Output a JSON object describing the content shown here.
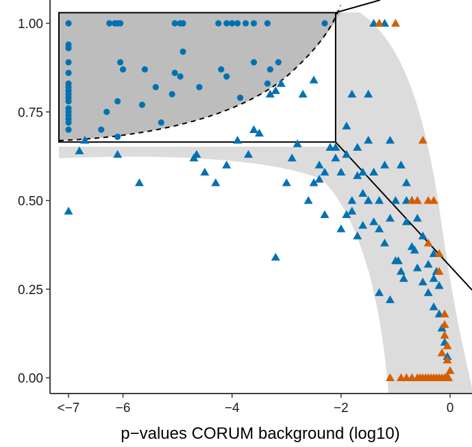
{
  "chart_data": {
    "type": "scatter",
    "title": "",
    "xlabel": "p−values CORUM background (log10)",
    "ylabel": "",
    "xlim": [
      -7.1,
      0.3
    ],
    "ylim": [
      -0.04,
      1.03
    ],
    "x_ticks": [
      {
        "value": -7,
        "label": "<−7"
      },
      {
        "value": -6,
        "label": "−6"
      },
      {
        "value": -4,
        "label": "−4"
      },
      {
        "value": -2,
        "label": "−2"
      },
      {
        "value": 0,
        "label": "0"
      }
    ],
    "y_ticks": [
      {
        "value": 0.0,
        "label": "0.00"
      },
      {
        "value": 0.25,
        "label": "0.25"
      },
      {
        "value": 0.5,
        "label": "0.50"
      },
      {
        "value": 0.75,
        "label": "0.75"
      },
      {
        "value": 1.0,
        "label": "1.00"
      }
    ],
    "colors": {
      "blue": "#0072B2",
      "orange": "#D55E00",
      "band": "#dcdcdc",
      "zoom_fill": "#bdbdbd"
    },
    "zoom_box": {
      "x": [
        -7.0,
        -2.1
      ],
      "y": [
        0.665,
        1.03
      ]
    },
    "series": [
      {
        "marker": "circle",
        "color": "#0072B2",
        "x": [
          -7,
          -7,
          -7,
          -7,
          -7,
          -7,
          -7,
          -7,
          -7,
          -7,
          -7,
          -7,
          -7,
          -7,
          -7,
          -7,
          -7,
          -6.4,
          -6.3,
          -6.1,
          -6.1,
          -6.05,
          -6.0,
          -5.65,
          -5.6,
          -5.4,
          -5.3,
          -5.1,
          -5.05,
          -4.95,
          -4.9,
          -4.6,
          -4.2,
          -4.1,
          -3.85,
          -3.6,
          -3.35,
          -3.3,
          -3.15,
          -6.25,
          -6.15,
          -6.1,
          -6.05,
          -5.05,
          -4.95,
          -4.9,
          -4.25,
          -4.1,
          -4.0,
          -3.9,
          -3.75,
          -3.6,
          -3.35,
          -2.3
        ],
        "y": [
          1.0,
          0.94,
          0.93,
          0.89,
          0.86,
          0.83,
          0.82,
          0.81,
          0.8,
          0.79,
          0.78,
          0.76,
          0.75,
          0.74,
          0.73,
          0.72,
          0.7,
          0.7,
          0.75,
          0.78,
          0.68,
          0.89,
          0.87,
          0.77,
          0.87,
          0.82,
          0.72,
          0.8,
          0.86,
          0.85,
          0.92,
          0.82,
          0.87,
          0.85,
          0.79,
          0.89,
          0.83,
          0.87,
          0.89,
          1.0,
          1.0,
          1.0,
          1.0,
          1.0,
          1.0,
          1.0,
          1.0,
          1.0,
          1.0,
          1.0,
          1.0,
          1.0,
          1.0,
          1.0
        ]
      },
      {
        "marker": "triangle",
        "color": "#0072B2",
        "x": [
          -7,
          -6.8,
          -6.7,
          -6.1,
          -5.7,
          -4.7,
          -4.65,
          -4.5,
          -4.3,
          -4.1,
          -3.9,
          -3.7,
          -3.6,
          -3.5,
          -3.3,
          -3.2,
          -3.2,
          -3.1,
          -3.0,
          -2.9,
          -2.8,
          -2.7,
          -2.6,
          -2.5,
          -2.5,
          -2.4,
          -2.4,
          -2.3,
          -2.3,
          -2.2,
          -2.1,
          -2.1,
          -2.0,
          -2.0,
          -1.9,
          -1.9,
          -1.8,
          -1.8,
          -1.7,
          -1.7,
          -1.6,
          -1.6,
          -1.5,
          -1.5,
          -1.4,
          -1.4,
          -1.3,
          -1.3,
          -1.2,
          -1.2,
          -1.1,
          -1.1,
          -1.0,
          -1.0,
          -0.9,
          -0.9,
          -0.8,
          -0.8,
          -0.7,
          -0.7,
          -0.6,
          -0.6,
          -0.5,
          -0.5,
          -0.4,
          -0.4,
          -0.3,
          -0.3,
          -0.2,
          -0.2,
          -0.15,
          -0.1,
          -0.05,
          -1.4,
          -1.3,
          -1.2,
          -0.8,
          -0.7,
          -0.6,
          -0.3,
          -0.25,
          -1.7,
          -1.5,
          -1.3,
          -1.1,
          -0.95,
          -0.85,
          -0.65,
          -1.9,
          -1.8,
          -1.6,
          -1.5
        ],
        "y": [
          0.47,
          0.64,
          0.67,
          0.63,
          0.55,
          0.62,
          0.63,
          0.58,
          0.55,
          0.6,
          0.67,
          0.63,
          0.7,
          0.69,
          0.8,
          0.34,
          0.81,
          0.83,
          0.55,
          0.62,
          0.66,
          0.8,
          0.5,
          0.55,
          0.84,
          0.56,
          0.6,
          0.46,
          0.58,
          0.65,
          0.65,
          0.62,
          0.58,
          0.42,
          0.46,
          0.63,
          0.8,
          0.5,
          0.4,
          0.65,
          0.58,
          0.43,
          0.5,
          0.8,
          0.44,
          0.58,
          0.42,
          0.5,
          0.6,
          0.38,
          0.45,
          0.67,
          0.33,
          0.5,
          0.6,
          0.3,
          0.44,
          0.55,
          0.37,
          0.5,
          0.31,
          0.45,
          0.27,
          0.4,
          0.24,
          0.32,
          0.2,
          0.28,
          0.18,
          0.26,
          0.14,
          0.1,
          0.06,
          1.0,
          1.0,
          1.0,
          0.5,
          0.5,
          0.5,
          0.35,
          0.3,
          0.57,
          0.67,
          0.24,
          0.22,
          0.33,
          0.28,
          0.36,
          0.71,
          0.47,
          0.52,
          0.5
        ]
      },
      {
        "marker": "triangle",
        "color": "#D55E00",
        "x": [
          -1.1,
          -0.9,
          -0.8,
          -0.7,
          -0.6,
          -0.55,
          -0.5,
          -0.45,
          -0.4,
          -0.35,
          -0.3,
          -0.25,
          -0.2,
          -0.15,
          -0.1,
          -0.08,
          -0.05,
          -0.03,
          0,
          -0.4,
          -0.3,
          -0.2,
          -0.1,
          -0.05,
          -0.15,
          -0.1,
          -0.05,
          -0.5,
          -0.7,
          -0.6,
          -0.2,
          -0.4,
          -0.1,
          -1.3,
          -1.0
        ],
        "y": [
          0.0,
          0.0,
          0.0,
          0.0,
          0.0,
          0.0,
          0.0,
          0.0,
          0.0,
          0.0,
          0.0,
          0.0,
          0.0,
          0.0,
          0.0,
          0.0,
          0.0,
          0.0,
          0.02,
          0.5,
          0.5,
          0.35,
          0.12,
          0.05,
          0.07,
          0.15,
          0.09,
          0.67,
          0.5,
          0.5,
          0.3,
          0.38,
          0.18,
          1.0,
          1.0
        ]
      }
    ]
  }
}
